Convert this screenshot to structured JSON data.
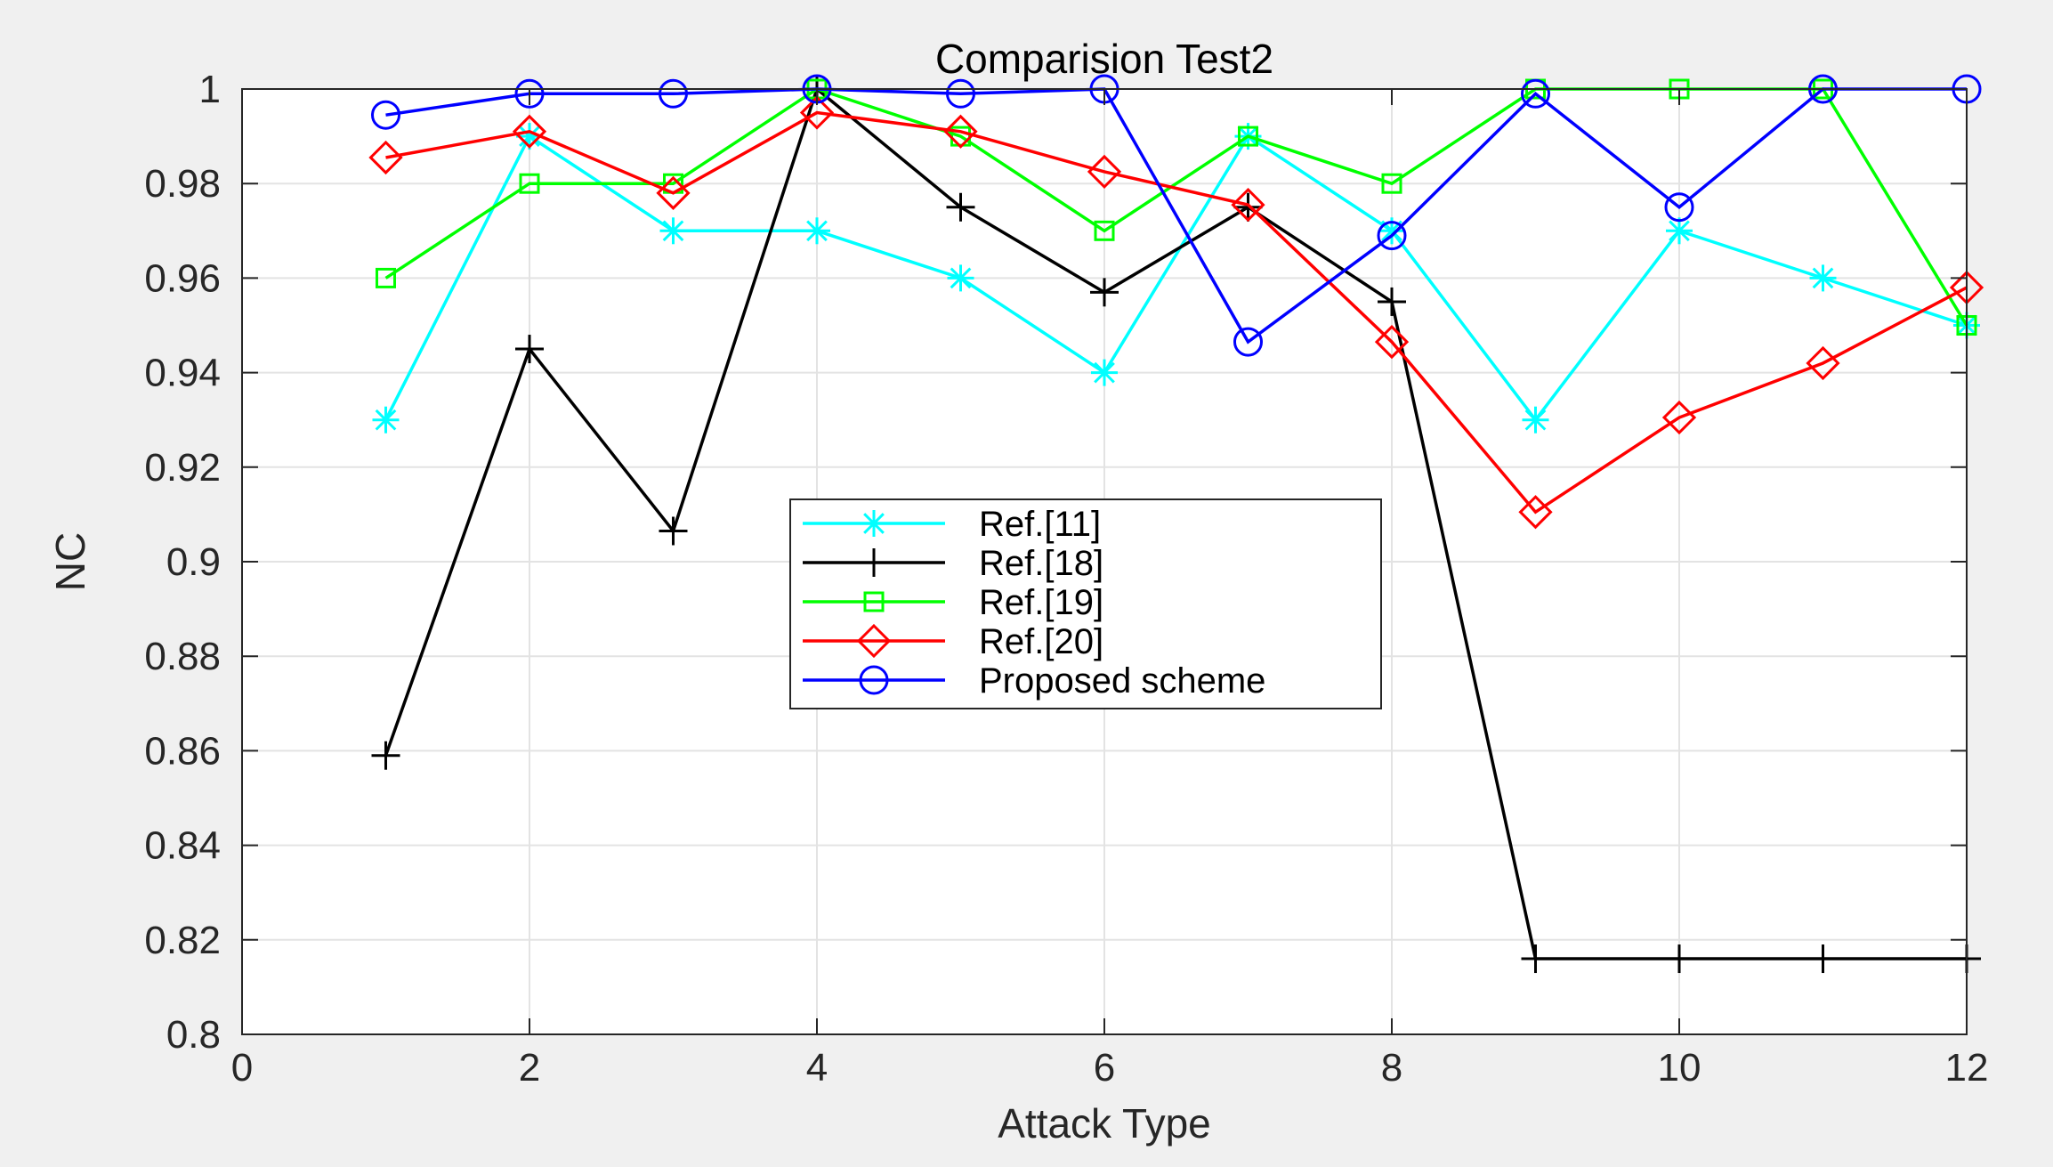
{
  "chart_data": {
    "type": "line",
    "title": "Comparision Test2",
    "xlabel": "Attack Type",
    "ylabel": "NC",
    "xlim": [
      0,
      12
    ],
    "ylim": [
      0.8,
      1
    ],
    "xticks": [
      0,
      2,
      4,
      6,
      8,
      10,
      12
    ],
    "yticks": [
      0.8,
      0.82,
      0.84,
      0.86,
      0.88,
      0.9,
      0.92,
      0.94,
      0.96,
      0.98,
      1
    ],
    "xtick_labels": [
      "0",
      "2",
      "4",
      "6",
      "8",
      "10",
      "12"
    ],
    "ytick_labels": [
      "0.8",
      "0.82",
      "0.84",
      "0.86",
      "0.88",
      "0.9",
      "0.92",
      "0.94",
      "0.96",
      "0.98",
      "1"
    ],
    "grid": true,
    "legend_position": "center",
    "x": [
      1,
      2,
      3,
      4,
      5,
      6,
      7,
      8,
      9,
      10,
      11,
      12
    ],
    "series": [
      {
        "name": "Ref.[11]",
        "color": "#00ffff",
        "marker": "asterisk",
        "values": [
          0.93,
          0.99,
          0.97,
          0.97,
          0.96,
          0.94,
          0.99,
          0.97,
          0.93,
          0.97,
          0.96,
          0.95
        ]
      },
      {
        "name": "Ref.[18]",
        "color": "#000000",
        "marker": "plus",
        "values": [
          0.859,
          0.945,
          0.9065,
          1.0,
          0.975,
          0.957,
          0.975,
          0.955,
          0.816,
          0.816,
          0.816,
          0.816
        ]
      },
      {
        "name": "Ref.[19]",
        "color": "#00ff00",
        "marker": "square",
        "values": [
          0.96,
          0.98,
          0.98,
          1.0,
          0.99,
          0.97,
          0.99,
          0.98,
          1.0,
          1.0,
          1.0,
          0.95
        ]
      },
      {
        "name": "Ref.[20]",
        "color": "#ff0000",
        "marker": "diamond",
        "values": [
          0.9855,
          0.991,
          0.978,
          0.995,
          0.991,
          0.9825,
          0.9755,
          0.9465,
          0.9105,
          0.9305,
          0.942,
          0.958
        ]
      },
      {
        "name": "Proposed scheme",
        "color": "#0000ff",
        "marker": "circle",
        "values": [
          0.9945,
          0.999,
          0.999,
          1.0,
          0.999,
          1.0,
          0.9465,
          0.969,
          0.999,
          0.975,
          1.0,
          1.0
        ]
      }
    ]
  }
}
